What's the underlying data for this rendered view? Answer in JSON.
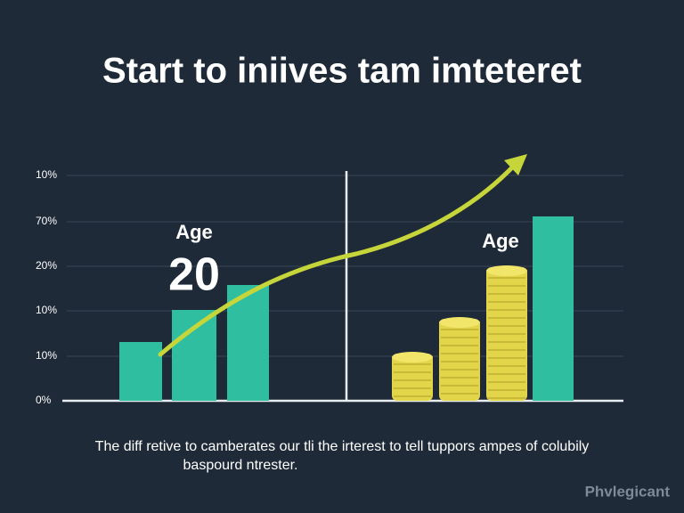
{
  "title": "Start to iniives tam imteteret",
  "axis_labels": [
    "10%",
    "70%",
    "20%",
    "10%",
    "10%",
    "0%"
  ],
  "left_annotation": {
    "label": "Age",
    "number": "20"
  },
  "right_annotation": "Age",
  "caption": [
    "The diff retive to camberates our tli the irterest to tell tuppors ampes of colubily",
    "baspourd ntrester."
  ],
  "logo": "Phvlegicant"
}
